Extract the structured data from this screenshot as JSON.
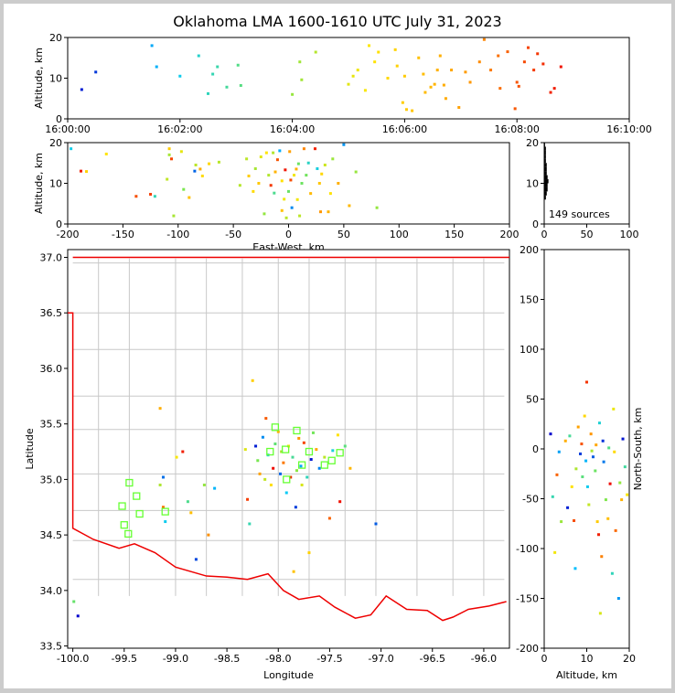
{
  "title": "Oklahoma LMA 1600-1610 UTC July 31, 2023",
  "sources_label": "149 sources",
  "colors": {
    "early": "#0000cc",
    "mid": "#00e5ff",
    "late": "#ff0000",
    "state_border": "#ee0000",
    "county_border": "#c8c8c8",
    "station": "#66ff33"
  },
  "chart_data": [
    {
      "panel": "time-altitude",
      "type": "scatter",
      "xlabel": "",
      "ylabel": "Altitude, km",
      "xticks": [
        "16:00:00",
        "16:02:00",
        "16:04:00",
        "16:06:00",
        "16:08:00",
        "16:10:00"
      ],
      "xlim_seconds_after_1600": [
        0,
        600
      ],
      "ylim": [
        0,
        20
      ],
      "yticks": [
        0,
        10,
        20
      ],
      "x_units": "seconds after 16:00:00 UTC",
      "points": [
        [
          15,
          7.2
        ],
        [
          30,
          11.5
        ],
        [
          90,
          18
        ],
        [
          95,
          12.8
        ],
        [
          120,
          10.5
        ],
        [
          140,
          15.5
        ],
        [
          150,
          6.2
        ],
        [
          155,
          11
        ],
        [
          160,
          12.8
        ],
        [
          170,
          7.8
        ],
        [
          185,
          8.2
        ],
        [
          182,
          13.2
        ],
        [
          240,
          6
        ],
        [
          248,
          14
        ],
        [
          250,
          9.6
        ],
        [
          265,
          16.4
        ],
        [
          300,
          8.5
        ],
        [
          305,
          10.5
        ],
        [
          310,
          12
        ],
        [
          318,
          7
        ],
        [
          322,
          18
        ],
        [
          328,
          14
        ],
        [
          332,
          16.4
        ],
        [
          342,
          10
        ],
        [
          350,
          17
        ],
        [
          352,
          13
        ],
        [
          358,
          4
        ],
        [
          360,
          10.5
        ],
        [
          362,
          2.3
        ],
        [
          368,
          2
        ],
        [
          375,
          15
        ],
        [
          380,
          11
        ],
        [
          382,
          6.5
        ],
        [
          388,
          7.8
        ],
        [
          392,
          8.5
        ],
        [
          395,
          12
        ],
        [
          398,
          15.5
        ],
        [
          402,
          8.3
        ],
        [
          404,
          5
        ],
        [
          410,
          12
        ],
        [
          418,
          2.8
        ],
        [
          425,
          11.5
        ],
        [
          430,
          9
        ],
        [
          440,
          14
        ],
        [
          445,
          19.5
        ],
        [
          452,
          12
        ],
        [
          460,
          15.5
        ],
        [
          462,
          7.5
        ],
        [
          470,
          16.5
        ],
        [
          478,
          2.5
        ],
        [
          480,
          9
        ],
        [
          482,
          8
        ],
        [
          488,
          14
        ],
        [
          492,
          17.5
        ],
        [
          498,
          12
        ],
        [
          502,
          16
        ],
        [
          508,
          13.5
        ],
        [
          516,
          6.5
        ],
        [
          520,
          7.5
        ],
        [
          527,
          12.8
        ]
      ]
    },
    {
      "panel": "plan-ew-altitude",
      "type": "scatter",
      "xlabel": "East-West, km",
      "ylabel": "Altitude, km",
      "xlim": [
        -200,
        200
      ],
      "xticks": [
        -200,
        -150,
        -100,
        -50,
        0,
        50,
        100,
        150,
        200
      ],
      "ylim": [
        0,
        20
      ],
      "yticks": [
        0,
        10,
        20
      ],
      "points": [
        [
          -197,
          18.5
        ],
        [
          -188,
          13
        ],
        [
          -183,
          12.9
        ],
        [
          -165,
          17.2
        ],
        [
          -138,
          6.8
        ],
        [
          -125,
          7.3
        ],
        [
          -121,
          6.8
        ],
        [
          -110,
          11
        ],
        [
          -108,
          18.5
        ],
        [
          -108,
          17
        ],
        [
          -106,
          16
        ],
        [
          -104,
          2
        ],
        [
          -97,
          17.8
        ],
        [
          -95,
          8.5
        ],
        [
          -90,
          6.5
        ],
        [
          -85,
          13
        ],
        [
          -84,
          14.5
        ],
        [
          -80,
          13.5
        ],
        [
          -78,
          11.8
        ],
        [
          -72,
          14.8
        ],
        [
          -63,
          15.2
        ],
        [
          -44,
          9.5
        ],
        [
          -38,
          16
        ],
        [
          -36,
          11.8
        ],
        [
          -32,
          8
        ],
        [
          -30,
          13.6
        ],
        [
          -27,
          10
        ],
        [
          -25,
          16.5
        ],
        [
          -22,
          2.5
        ],
        [
          -20,
          17.5
        ],
        [
          -18,
          12
        ],
        [
          -16,
          9.5
        ],
        [
          -14,
          17.5
        ],
        [
          -13,
          7.6
        ],
        [
          -12,
          12.8
        ],
        [
          -10,
          15.8
        ],
        [
          -8,
          18
        ],
        [
          -6,
          10.6
        ],
        [
          -6,
          3.3
        ],
        [
          -4,
          6.1
        ],
        [
          -3,
          13.3
        ],
        [
          -2,
          1.5
        ],
        [
          0,
          8
        ],
        [
          1,
          17.8
        ],
        [
          2,
          10.8
        ],
        [
          3,
          4
        ],
        [
          5,
          12
        ],
        [
          7,
          13.5
        ],
        [
          8,
          6
        ],
        [
          9,
          14.8
        ],
        [
          10,
          2
        ],
        [
          12,
          10
        ],
        [
          14,
          18.5
        ],
        [
          16,
          12
        ],
        [
          18,
          15
        ],
        [
          20,
          7.5
        ],
        [
          24,
          18.5
        ],
        [
          26,
          13.6
        ],
        [
          28,
          10
        ],
        [
          29,
          3
        ],
        [
          30,
          12.3
        ],
        [
          33,
          14.5
        ],
        [
          36,
          3
        ],
        [
          38,
          7.5
        ],
        [
          40,
          16
        ],
        [
          45,
          10
        ],
        [
          50,
          19.5
        ],
        [
          55,
          4.5
        ],
        [
          61,
          12.8
        ],
        [
          80,
          4
        ]
      ]
    },
    {
      "panel": "altitude-histogram",
      "type": "bar",
      "xlim": [
        0,
        100
      ],
      "xticks": [
        0,
        50,
        100
      ],
      "ylim": [
        0,
        20
      ],
      "yticks": [
        0,
        10,
        20
      ],
      "bins_km": [
        6,
        7,
        8,
        9,
        10,
        11,
        12,
        13,
        14,
        15,
        16,
        17,
        18,
        19
      ],
      "counts": [
        2,
        3,
        4,
        4,
        5,
        4,
        3,
        3,
        3,
        2,
        2,
        2,
        2,
        1
      ]
    },
    {
      "panel": "map-lon-lat",
      "type": "scatter",
      "xlabel": "Longitude",
      "ylabel": "Latitude",
      "xlim": [
        -100.05,
        -95.75
      ],
      "xticks": [
        -100.0,
        -99.5,
        -99.0,
        -98.5,
        -98.0,
        -97.5,
        -97.0,
        -96.5,
        -96.0
      ],
      "ylim": [
        33.48,
        37.07
      ],
      "yticks": [
        33.5,
        34.0,
        34.5,
        35.0,
        35.5,
        36.0,
        36.5,
        37.0
      ],
      "points": [
        [
          -99.95,
          33.77
        ],
        [
          -99.99,
          33.9
        ],
        [
          -99.15,
          35.64
        ],
        [
          -99.12,
          35.02
        ],
        [
          -99.15,
          34.95
        ],
        [
          -99.12,
          34.75
        ],
        [
          -99.1,
          34.62
        ],
        [
          -98.99,
          35.2
        ],
        [
          -98.93,
          35.25
        ],
        [
          -98.88,
          34.8
        ],
        [
          -98.85,
          34.7
        ],
        [
          -98.8,
          34.28
        ],
        [
          -98.72,
          34.95
        ],
        [
          -98.68,
          34.5
        ],
        [
          -98.62,
          34.92
        ],
        [
          -98.32,
          35.27
        ],
        [
          -98.3,
          34.82
        ],
        [
          -98.28,
          34.6
        ],
        [
          -98.25,
          35.89
        ],
        [
          -98.22,
          35.3
        ],
        [
          -98.2,
          35.17
        ],
        [
          -98.18,
          35.05
        ],
        [
          -98.15,
          35.38
        ],
        [
          -98.13,
          35.0
        ],
        [
          -98.12,
          35.55
        ],
        [
          -98.1,
          35.22
        ],
        [
          -98.07,
          34.95
        ],
        [
          -98.05,
          35.1
        ],
        [
          -98.03,
          35.32
        ],
        [
          -98.0,
          35.43
        ],
        [
          -97.98,
          35.05
        ],
        [
          -97.97,
          35.25
        ],
        [
          -97.95,
          35.15
        ],
        [
          -97.92,
          34.88
        ],
        [
          -97.9,
          35.3
        ],
        [
          -97.88,
          35.02
        ],
        [
          -97.86,
          35.2
        ],
        [
          -97.85,
          34.17
        ],
        [
          -97.83,
          34.75
        ],
        [
          -97.82,
          35.08
        ],
        [
          -97.8,
          35.37
        ],
        [
          -97.78,
          35.12
        ],
        [
          -97.77,
          34.95
        ],
        [
          -97.75,
          35.33
        ],
        [
          -97.72,
          35.02
        ],
        [
          -97.7,
          34.34
        ],
        [
          -97.68,
          35.18
        ],
        [
          -97.66,
          35.42
        ],
        [
          -97.63,
          35.27
        ],
        [
          -97.6,
          35.1
        ],
        [
          -97.55,
          35.2
        ],
        [
          -97.5,
          34.65
        ],
        [
          -97.47,
          35.26
        ],
        [
          -97.42,
          35.4
        ],
        [
          -97.4,
          34.8
        ],
        [
          -97.35,
          35.3
        ],
        [
          -97.3,
          35.1
        ],
        [
          -97.05,
          34.6
        ]
      ],
      "stations": [
        [
          -99.45,
          34.97
        ],
        [
          -99.38,
          34.85
        ],
        [
          -99.52,
          34.76
        ],
        [
          -99.35,
          34.69
        ],
        [
          -99.5,
          34.59
        ],
        [
          -99.46,
          34.51
        ],
        [
          -99.1,
          34.71
        ],
        [
          -98.03,
          35.47
        ],
        [
          -98.08,
          35.25
        ],
        [
          -97.93,
          35.27
        ],
        [
          -97.92,
          35.0
        ],
        [
          -97.82,
          35.44
        ],
        [
          -97.77,
          35.13
        ],
        [
          -97.7,
          35.25
        ],
        [
          -97.55,
          35.13
        ],
        [
          -97.48,
          35.17
        ],
        [
          -97.4,
          35.24
        ]
      ]
    },
    {
      "panel": "altitude-ns",
      "type": "scatter",
      "xlabel": "Altitude, km",
      "ylabel": "North-South, km",
      "xlim": [
        0,
        20
      ],
      "xticks": [
        0,
        10,
        20
      ],
      "ylim": [
        -200,
        200
      ],
      "yticks": [
        -200,
        -150,
        -100,
        -50,
        0,
        50,
        100,
        150,
        200
      ],
      "points": [
        [
          1.5,
          15
        ],
        [
          2,
          -48
        ],
        [
          2.5,
          -104
        ],
        [
          3,
          -26
        ],
        [
          3.5,
          -3
        ],
        [
          4,
          -73
        ],
        [
          5,
          8
        ],
        [
          5.5,
          -59
        ],
        [
          6,
          13
        ],
        [
          6.5,
          -38
        ],
        [
          7,
          -72
        ],
        [
          7.3,
          -120
        ],
        [
          7.5,
          -20
        ],
        [
          8,
          22
        ],
        [
          8.5,
          -5
        ],
        [
          9,
          -28
        ],
        [
          9.5,
          33
        ],
        [
          10,
          67
        ],
        [
          10.2,
          -38
        ],
        [
          10.5,
          -56
        ],
        [
          11,
          15
        ],
        [
          11.5,
          -8
        ],
        [
          12,
          -22
        ],
        [
          12.5,
          -73
        ],
        [
          12.8,
          -86
        ],
        [
          13,
          26
        ],
        [
          13.2,
          -165
        ],
        [
          13.5,
          -108
        ],
        [
          14,
          -13
        ],
        [
          14.5,
          -51
        ],
        [
          15,
          -70
        ],
        [
          15.5,
          -35
        ],
        [
          16,
          -125
        ],
        [
          16.3,
          40
        ],
        [
          16.8,
          -82
        ],
        [
          17.5,
          -150
        ],
        [
          17.8,
          -34
        ],
        [
          18.2,
          -51
        ],
        [
          18.5,
          10
        ],
        [
          19,
          -18
        ],
        [
          19.5,
          -46
        ],
        [
          8.8,
          5
        ],
        [
          9.8,
          -12
        ],
        [
          11.2,
          -2
        ],
        [
          12.2,
          4
        ],
        [
          13.8,
          8
        ],
        [
          15.2,
          1
        ],
        [
          16.5,
          -3
        ]
      ]
    }
  ]
}
